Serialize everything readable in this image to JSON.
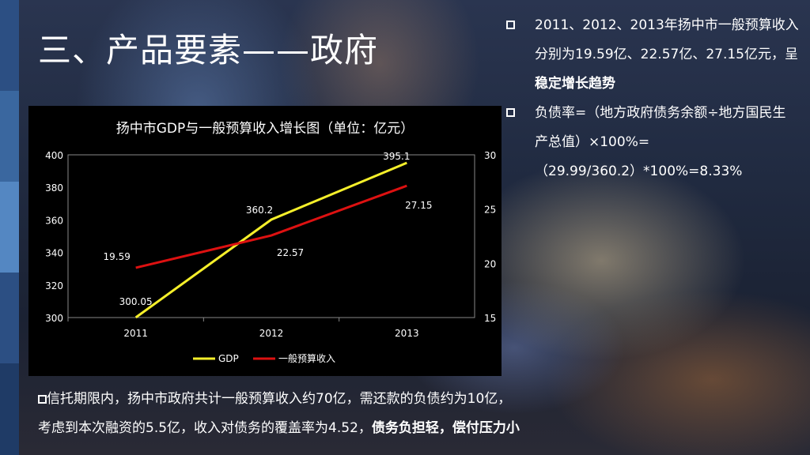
{
  "slide": {
    "title": "三、产品要素——政府"
  },
  "right_panel": {
    "bullet1_text": "2011、2012、2013年扬中市一般预算收入分别为19.59亿、22.57亿、27.15亿元，呈",
    "bullet1_bold": "稳定增长趋势",
    "bullet2_line1": "负债率=（地方政府债务余额÷地方国民生产总值）×100%=",
    "bullet2_line2": "（29.99/360.2）*100%=8.33%"
  },
  "bottom": {
    "line1": "信托期限内，扬中市政府共计一般预算收入约70亿，需还款的负债约为10亿，",
    "line2_plain": "考虑到本次融资的5.5亿，收入对债务的覆盖率为4.52，",
    "line2_bold": "债务负担轻，偿付压力小"
  },
  "colors": {
    "gdp": "#f5ef2a",
    "budget": "#dd1111",
    "chart_bg": "#000000"
  },
  "chart_data": {
    "type": "line",
    "title": "扬中市GDP与一般预算收入增长图（单位：亿元）",
    "categories": [
      "2011",
      "2012",
      "2013"
    ],
    "y_left": {
      "min": 300,
      "max": 400,
      "ticks": [
        "300",
        "320",
        "340",
        "360",
        "380",
        "400"
      ]
    },
    "y_right": {
      "min": 15,
      "max": 30,
      "ticks": [
        "15",
        "20",
        "25",
        "30"
      ]
    },
    "series": [
      {
        "name": "GDP",
        "axis": "left",
        "values": [
          300.05,
          360.2,
          395.1
        ],
        "labels": [
          "300.05",
          "360.2",
          "395.1"
        ]
      },
      {
        "name": "一般预算收入",
        "axis": "right",
        "values": [
          19.59,
          22.57,
          27.15
        ],
        "labels": [
          "19.59",
          "22.57",
          "27.15"
        ]
      }
    ],
    "legend_position": "bottom"
  }
}
